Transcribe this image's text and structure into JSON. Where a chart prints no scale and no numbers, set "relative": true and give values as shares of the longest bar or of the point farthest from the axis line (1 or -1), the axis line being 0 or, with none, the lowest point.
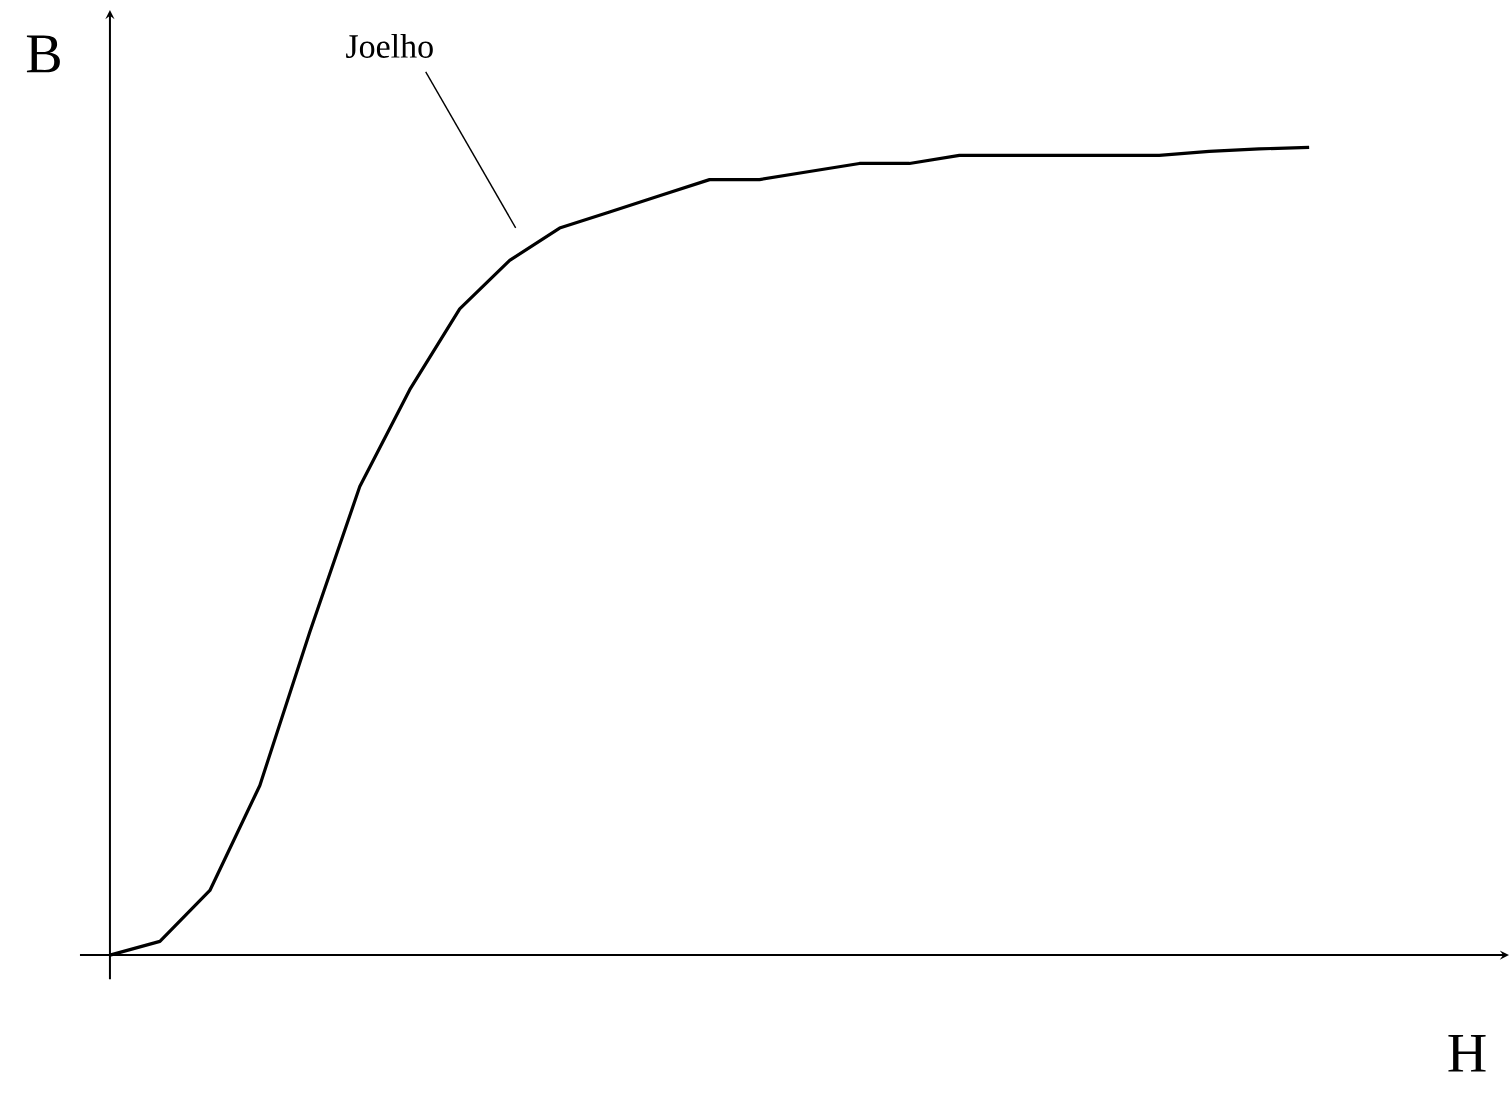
{
  "chart_data": {
    "type": "line",
    "relative": true,
    "xlabel": "H",
    "ylabel": "B",
    "annotations": [
      "Joelho"
    ],
    "categories": [
      null,
      null,
      null,
      null,
      null,
      null,
      null,
      null,
      null,
      null,
      null,
      null,
      null,
      null,
      null,
      null,
      null,
      null,
      null,
      null,
      null,
      null,
      null,
      null,
      null
    ],
    "series": [
      {
        "color": "#000000",
        "values": [
          0,
          0.017,
          0.08,
          0.21,
          0.4,
          0.58,
          0.7,
          0.8,
          0.86,
          0.9,
          0.92,
          0.94,
          0.96,
          0.96,
          0.97,
          0.98,
          0.98,
          0.99,
          0.99,
          0.99,
          0.99,
          0.99,
          0.995,
          0.998,
          1
        ]
      }
    ],
    "line_style": "solid",
    "marker": "none"
  }
}
